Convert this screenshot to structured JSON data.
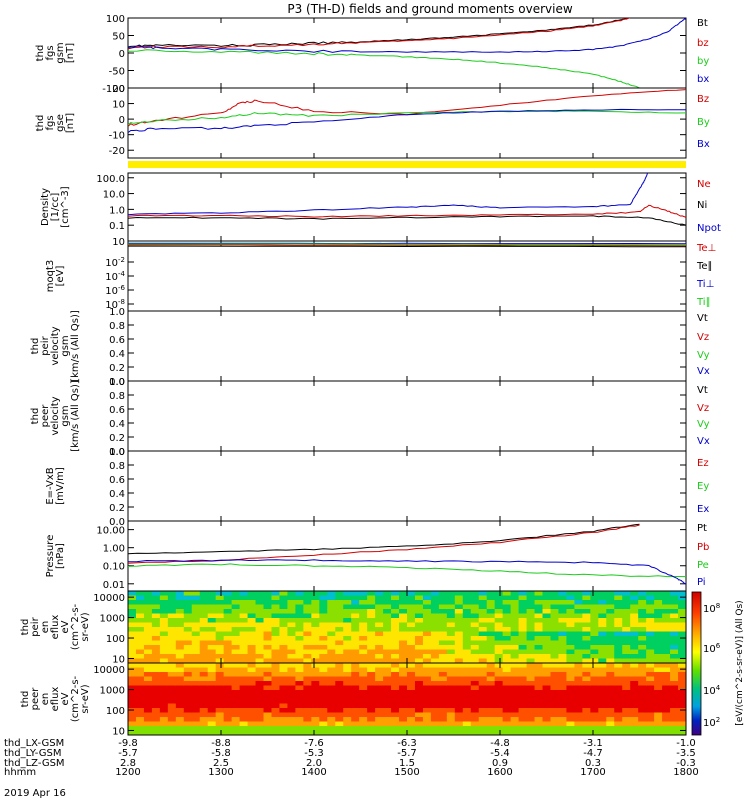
{
  "title": "P3 (TH-D) fields and ground moments overview",
  "date_label": "2019 Apr 16",
  "colorbar_label": "[eV/(cm^2-s-sr-eV)] (All Qs)",
  "colorbar_ticks": [
    "10^8",
    "10^6",
    "10^4",
    "10^2"
  ],
  "chart_data": [
    {
      "type": "line",
      "id": "fgs_gsm",
      "ylabel": [
        "thd",
        "fgs",
        "gsm",
        "[nT]"
      ],
      "ylim": [
        -100,
        100
      ],
      "yticks": [
        "100",
        "50",
        "0",
        "-50",
        "-100"
      ],
      "ytick_values": [
        100,
        50,
        0,
        -50,
        -100
      ],
      "series": [
        {
          "name": "Bt",
          "color": "#000000",
          "x": [
            1200,
            1230,
            1300,
            1340,
            1400,
            1450,
            1500,
            1550,
            1600,
            1650,
            1700,
            1730,
            1750
          ],
          "y": [
            20,
            22,
            21,
            23,
            28,
            32,
            38,
            45,
            55,
            65,
            80,
            95,
            110
          ]
        },
        {
          "name": "bz",
          "color": "#d40000",
          "x": [
            1200,
            1230,
            1300,
            1340,
            1400,
            1450,
            1500,
            1550,
            1600,
            1650,
            1700,
            1730,
            1750
          ],
          "y": [
            15,
            18,
            17,
            20,
            25,
            30,
            35,
            42,
            52,
            62,
            78,
            93,
            108
          ]
        },
        {
          "name": "by",
          "color": "#1ccc1c",
          "x": [
            1200,
            1300,
            1400,
            1450,
            1500,
            1550,
            1600,
            1650,
            1700,
            1730,
            1750
          ],
          "y": [
            8,
            4,
            -2,
            -6,
            -11,
            -18,
            -28,
            -42,
            -60,
            -82,
            -100
          ]
        },
        {
          "name": "bx",
          "color": "#0000cc",
          "x": [
            1200,
            1230,
            1300,
            1400,
            1500,
            1600,
            1650,
            1700,
            1730,
            1760,
            1780,
            1795,
            1800
          ],
          "y": [
            18,
            15,
            10,
            5,
            3,
            3,
            4,
            10,
            20,
            40,
            60,
            90,
            100
          ]
        }
      ]
    },
    {
      "type": "line",
      "id": "fgs_gse",
      "ylabel": [
        "thd",
        "fgs",
        "gse",
        "[nT]"
      ],
      "ylim": [
        -25,
        20
      ],
      "yticks": [
        "20",
        "10",
        "0",
        "-10",
        "-20"
      ],
      "ytick_values": [
        20,
        10,
        0,
        -10,
        -20
      ],
      "series": [
        {
          "name": "Bz",
          "color": "#d40000",
          "x": [
            1200,
            1230,
            1300,
            1320,
            1340,
            1400,
            1500,
            1600,
            1700,
            1800
          ],
          "y": [
            -4,
            -1,
            4,
            10,
            12,
            5,
            3,
            9,
            15,
            19
          ]
        },
        {
          "name": "By",
          "color": "#1ccc1c",
          "x": [
            1200,
            1230,
            1300,
            1340,
            1400,
            1500,
            1600,
            1700,
            1800
          ],
          "y": [
            -3,
            -1,
            1,
            4,
            2,
            4,
            5,
            5,
            4
          ]
        },
        {
          "name": "Bx",
          "color": "#0000cc",
          "x": [
            1200,
            1230,
            1300,
            1340,
            1400,
            1500,
            1600,
            1700,
            1800
          ],
          "y": [
            -8,
            -6,
            -6,
            -4,
            -2,
            3,
            5,
            6,
            6
          ]
        }
      ]
    },
    {
      "type": "line",
      "id": "density",
      "ylabel": [
        "Density",
        "[1/cc]",
        "[cm^-3]"
      ],
      "yscale": "log",
      "ylim": [
        0.01,
        200
      ],
      "yticks": [
        "100.0",
        "10.0",
        "1.0",
        "0.1"
      ],
      "ytick_values": [
        100,
        10,
        1,
        0.1
      ],
      "series": [
        {
          "name": "Ne",
          "color": "#d40000",
          "x": [
            1200,
            1300,
            1400,
            1500,
            1600,
            1700,
            1750,
            1760,
            1780,
            1800
          ],
          "y": [
            0.4,
            0.4,
            0.35,
            0.4,
            0.45,
            0.5,
            0.7,
            1.8,
            0.8,
            0.3
          ]
        },
        {
          "name": "Ni",
          "color": "#000000",
          "x": [
            1200,
            1300,
            1400,
            1500,
            1600,
            1700,
            1760,
            1800
          ],
          "y": [
            0.3,
            0.3,
            0.25,
            0.3,
            0.35,
            0.38,
            0.3,
            0.1
          ]
        },
        {
          "name": "Npot",
          "color": "#0000cc",
          "x": [
            1200,
            1300,
            1400,
            1500,
            1550,
            1600,
            1700,
            1740,
            1750,
            1755,
            1760
          ],
          "y": [
            0.5,
            0.6,
            0.9,
            1.4,
            1.8,
            1.3,
            1.5,
            2.0,
            20,
            60,
            300
          ]
        }
      ]
    },
    {
      "type": "line",
      "id": "moments_temp",
      "ylabel": [
        "moqt3",
        "[eV]"
      ],
      "yscale": "log",
      "ylim": [
        1e-09,
        10
      ],
      "yticks": [
        "10",
        "10^-2",
        "10^-4",
        "10^-6",
        "10^-8"
      ],
      "ytick_values": [
        10,
        0.01,
        0.0001,
        1e-06,
        1e-08
      ],
      "series": [
        {
          "name": "Te⊥",
          "color": "#d40000",
          "x": [
            1200,
            1800
          ],
          "y": [
            3,
            2
          ]
        },
        {
          "name": "Te∥",
          "color": "#000000",
          "x": [
            1200,
            1800
          ],
          "y": [
            2,
            1.5
          ]
        },
        {
          "name": "Ti⊥",
          "color": "#0000cc",
          "x": [
            1200,
            1800
          ],
          "y": [
            5,
            4
          ]
        },
        {
          "name": "Ti∥",
          "color": "#1ccc1c",
          "x": [
            1200,
            1800
          ],
          "y": [
            4,
            3
          ]
        }
      ]
    },
    {
      "type": "line",
      "id": "peir_vel",
      "ylabel": [
        "thd",
        "peir",
        "velocity",
        "gsm",
        "[km/s (All Qs)]"
      ],
      "ylim": [
        0,
        1
      ],
      "yticks": [
        "1.0",
        "0.8",
        "0.6",
        "0.4",
        "0.2",
        "0.0"
      ],
      "ytick_values": [
        1,
        0.8,
        0.6,
        0.4,
        0.2,
        0
      ],
      "series": [
        {
          "name": "Vt",
          "color": "#000000"
        },
        {
          "name": "Vz",
          "color": "#d40000"
        },
        {
          "name": "Vy",
          "color": "#1ccc1c"
        },
        {
          "name": "Vx",
          "color": "#0000cc"
        }
      ]
    },
    {
      "type": "line",
      "id": "peer_vel",
      "ylabel": [
        "thd",
        "peer",
        "velocity",
        "gsm",
        "[km/s (All Qs)]"
      ],
      "ylim": [
        0,
        1
      ],
      "yticks": [
        "1.0",
        "0.8",
        "0.6",
        "0.4",
        "0.2",
        "0.0"
      ],
      "ytick_values": [
        1,
        0.8,
        0.6,
        0.4,
        0.2,
        0
      ],
      "series": [
        {
          "name": "Vt",
          "color": "#000000"
        },
        {
          "name": "Vz",
          "color": "#d40000"
        },
        {
          "name": "Vy",
          "color": "#1ccc1c"
        },
        {
          "name": "Vx",
          "color": "#0000cc"
        }
      ]
    },
    {
      "type": "line",
      "id": "efield",
      "ylabel": [
        "E=-VxB",
        "[mV/m]"
      ],
      "ylim": [
        0,
        1
      ],
      "yticks": [
        "1.0",
        "0.8",
        "0.6",
        "0.4",
        "0.2",
        "0.0"
      ],
      "ytick_values": [
        1,
        0.8,
        0.6,
        0.4,
        0.2,
        0
      ],
      "series": [
        {
          "name": "Ez",
          "color": "#d40000"
        },
        {
          "name": "Ey",
          "color": "#1ccc1c"
        },
        {
          "name": "Ex",
          "color": "#0000cc"
        }
      ]
    },
    {
      "type": "line",
      "id": "pressure",
      "ylabel": [
        "Pressure",
        "[nPa]"
      ],
      "yscale": "log",
      "ylim": [
        0.004,
        30
      ],
      "yticks": [
        "10.00",
        "1.00",
        "0.10",
        "0.01"
      ],
      "ytick_values": [
        10,
        1,
        0.1,
        0.01
      ],
      "series": [
        {
          "name": "Pt",
          "color": "#000000",
          "x": [
            1200,
            1300,
            1400,
            1500,
            1600,
            1700,
            1750
          ],
          "y": [
            0.5,
            0.6,
            0.8,
            1.2,
            2.5,
            8,
            20
          ]
        },
        {
          "name": "Pb",
          "color": "#d40000",
          "x": [
            1200,
            1300,
            1400,
            1500,
            1600,
            1700,
            1750
          ],
          "y": [
            0.15,
            0.2,
            0.4,
            0.8,
            2,
            7,
            18
          ]
        },
        {
          "name": "Pe",
          "color": "#1ccc1c",
          "x": [
            1200,
            1300,
            1400,
            1500,
            1600,
            1700,
            1800
          ],
          "y": [
            0.1,
            0.12,
            0.1,
            0.08,
            0.05,
            0.03,
            0.025
          ]
        },
        {
          "name": "Pi",
          "color": "#0000cc",
          "x": [
            1200,
            1300,
            1400,
            1500,
            1600,
            1700,
            1760,
            1790,
            1800
          ],
          "y": [
            0.18,
            0.2,
            0.2,
            0.18,
            0.17,
            0.15,
            0.1,
            0.02,
            0.01
          ]
        }
      ]
    },
    {
      "type": "heatmap",
      "id": "peir_spec",
      "ylabel": [
        "thd",
        "peir",
        "en",
        "eflux",
        "eV",
        "(cm^2-s-",
        "sr-eV)"
      ],
      "yscale": "log",
      "ylim": [
        6,
        20000
      ],
      "yticks": [
        "10000",
        "1000",
        "100",
        "10"
      ],
      "ytick_values": [
        10000,
        1000,
        100,
        10
      ]
    },
    {
      "type": "heatmap",
      "id": "peer_spec",
      "ylabel": [
        "thd",
        "peer",
        "en",
        "eflux",
        "eV",
        "(cm^2-s-",
        "sr-eV)"
      ],
      "yscale": "log",
      "ylim": [
        6,
        20000
      ],
      "yticks": [
        "10000",
        "1000",
        "100",
        "10"
      ],
      "ytick_values": [
        10000,
        1000,
        100,
        10
      ]
    }
  ],
  "x_axis": {
    "row_labels": [
      "thd_LX-GSM",
      "thd_LY-GSM",
      "thd_LZ-GSM",
      "hhmm"
    ],
    "ticks": [
      {
        "values": [
          "-9.8",
          "-5.7",
          "2.8",
          "1200"
        ]
      },
      {
        "values": [
          "-8.8",
          "-5.8",
          "2.5",
          "1300"
        ]
      },
      {
        "values": [
          "-7.6",
          "-5.3",
          "2.0",
          "1400"
        ]
      },
      {
        "values": [
          "-6.3",
          "-5.7",
          "1.5",
          "1500"
        ]
      },
      {
        "values": [
          "-4.8",
          "-5.4",
          "0.9",
          "1600"
        ]
      },
      {
        "values": [
          "-3.1",
          "-4.7",
          "0.3",
          "1700"
        ]
      },
      {
        "values": [
          "-1.0",
          "-3.5",
          "-0.3",
          "1800"
        ]
      }
    ]
  }
}
